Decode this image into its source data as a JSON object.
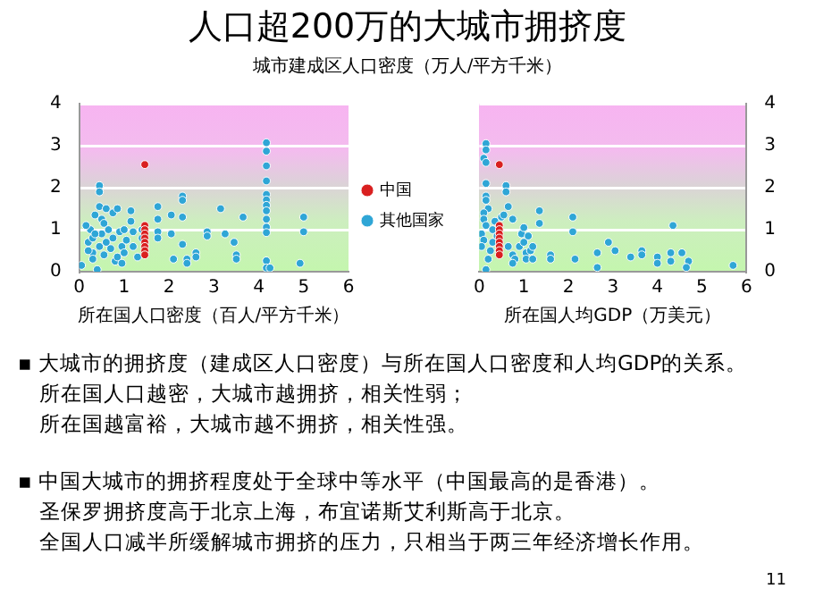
{
  "chart_data": [
    {
      "type": "scatter",
      "title": "人口超200万的大城市拥挤度",
      "ylabel": "城市建成区人口密度（万人/平方千米）",
      "xlabel": "所在国人口密度（百人/平方千米）",
      "xlim": [
        0,
        6
      ],
      "xticks": [
        0,
        1,
        2,
        3,
        4,
        5,
        6
      ],
      "ylim": [
        0,
        4
      ],
      "yticks": [
        0,
        1,
        2,
        3,
        4
      ],
      "grid": "y",
      "legend": "right",
      "marker": "circle",
      "series": [
        {
          "name": "中国",
          "color": "#d92020",
          "x": [
            1.46,
            1.46,
            1.46,
            1.46,
            1.46,
            1.46,
            1.46,
            1.46,
            1.46
          ],
          "values": [
            2.55,
            1.1,
            1.0,
            0.9,
            0.8,
            0.7,
            0.6,
            0.5,
            0.4
          ]
        },
        {
          "name": "其他国家",
          "color": "#2fa6d6",
          "x": [
            4.17,
            4.17,
            4.17,
            4.17,
            4.17,
            4.17,
            4.17,
            4.17,
            4.17,
            4.17,
            4.17,
            4.17,
            4.17,
            4.25,
            5.0,
            5.0,
            4.92,
            2.3,
            2.3,
            2.3,
            1.75,
            1.75,
            1.75,
            1.75,
            2.05,
            2.05,
            2.1,
            2.3,
            2.4,
            2.4,
            2.6,
            2.6,
            2.85,
            2.85,
            3.15,
            3.25,
            3.45,
            3.5,
            3.5,
            3.65,
            1.15,
            1.15,
            1.2,
            1.2,
            1.3,
            1.4,
            1.4,
            0.05,
            0.2,
            0.25,
            0.3,
            0.3,
            0.35,
            0.4,
            0.45,
            0.45,
            0.45,
            0.45,
            0.5,
            0.5,
            0.55,
            0.6,
            0.65,
            0.7,
            0.75,
            0.75,
            0.8,
            0.85,
            0.85,
            0.9,
            0.95,
            0.95,
            1.0,
            1.0,
            1.05,
            0.15,
            0.3,
            0.6,
            0.2,
            0.35,
            0.55
          ],
          "values": [
            3.07,
            2.87,
            2.52,
            2.16,
            1.84,
            1.71,
            1.58,
            1.45,
            1.25,
            1.06,
            0.93,
            0.26,
            0.09,
            0.09,
            1.3,
            0.95,
            0.2,
            1.8,
            1.7,
            1.3,
            1.55,
            1.25,
            0.95,
            0.8,
            1.35,
            0.9,
            0.3,
            0.65,
            0.3,
            0.2,
            0.45,
            0.35,
            0.95,
            0.85,
            1.5,
            0.9,
            0.7,
            0.4,
            0.3,
            1.3,
            1.45,
            1.2,
            0.95,
            0.6,
            0.35,
            1.0,
            0.8,
            0.15,
            0.7,
            1.0,
            0.45,
            0.3,
            1.35,
            0.05,
            2.05,
            1.9,
            1.55,
            0.6,
            1.25,
            0.9,
            0.4,
            1.5,
            1.0,
            0.55,
            1.4,
            0.8,
            0.25,
            1.5,
            0.35,
            0.95,
            0.2,
            0.6,
            1.0,
            0.45,
            0.75,
            1.1,
            0.8,
            0.7,
            0.5,
            0.9,
            1.15
          ]
        }
      ]
    },
    {
      "type": "scatter",
      "xlabel": "所在国人均GDP（万美元）",
      "xlim": [
        0,
        6
      ],
      "xticks": [
        0,
        1,
        2,
        3,
        4,
        5,
        6
      ],
      "ylim": [
        0,
        4
      ],
      "yticks": [
        0,
        1,
        2,
        3,
        4
      ],
      "grid": "y",
      "marker": "circle",
      "annotations": [
        "11"
      ],
      "series": [
        {
          "color": "#d92020",
          "x": [
            0.45,
            0.45,
            0.45,
            0.45,
            0.45,
            0.45,
            0.45,
            0.45,
            0.45
          ],
          "values": [
            2.55,
            1.1,
            1.0,
            0.9,
            0.8,
            0.7,
            0.6,
            0.5,
            0.4
          ]
        },
        {
          "color": "#2fa6d6",
          "x": [
            0.15,
            0.15,
            0.1,
            0.15,
            0.15,
            0.15,
            0.15,
            0.2,
            0.1,
            0.1,
            0.15,
            0.05,
            0.1,
            0.05,
            0.15,
            0.2,
            0.25,
            0.3,
            0.3,
            0.6,
            0.6,
            0.65,
            0.5,
            0.55,
            0.75,
            0.4,
            0.35,
            0.65,
            0.75,
            0.8,
            0.75,
            0.9,
            0.95,
            1.0,
            1.0,
            1.05,
            1.05,
            1.1,
            1.15,
            1.2,
            1.2,
            1.35,
            1.35,
            1.6,
            1.6,
            2.1,
            2.1,
            2.15,
            2.65,
            2.65,
            2.9,
            3.05,
            3.4,
            3.65,
            3.65,
            4.0,
            4.0,
            4.35,
            4.3,
            4.3,
            4.55,
            4.7,
            4.65,
            5.7
          ],
          "values": [
            3.05,
            2.9,
            2.7,
            2.6,
            2.1,
            1.8,
            1.7,
            1.5,
            1.4,
            1.25,
            1.1,
            0.9,
            0.75,
            0.6,
            0.05,
            0.3,
            0.5,
            1.0,
            0.7,
            2.05,
            1.9,
            1.55,
            1.3,
            1.35,
            1.25,
            0.85,
            1.2,
            0.6,
            0.4,
            0.3,
            0.2,
            0.6,
            0.9,
            1.05,
            0.7,
            0.45,
            0.3,
            0.85,
            0.5,
            0.6,
            0.3,
            1.45,
            1.15,
            0.4,
            0.3,
            1.3,
            0.95,
            0.3,
            0.45,
            0.1,
            0.7,
            0.5,
            0.35,
            0.5,
            0.4,
            0.35,
            0.2,
            1.1,
            0.45,
            0.25,
            0.45,
            0.25,
            0.1,
            0.15
          ]
        }
      ]
    },
    {
      "type": "other",
      "annotations": [
        "▪ 大城市的拥挤度（建成区人口密度）与所在国人口密度和人均GDP的关系。",
        "所在国人口越密，大城市越拥挤，相关性弱；",
        "所在国越富裕，大城市越不拥挤，相关性强。"
      ]
    },
    {
      "type": "other",
      "annotations": [
        "▪ 中国大城市的拥挤程度处于全球中等水平（中国最高的是香港）。",
        "圣保罗拥挤度高于北京上海，布宜诺斯艾利斯高于北京。",
        "全国人口减半所缓解城市拥挤的压力，只相当于两三年经济增长作用。"
      ]
    }
  ]
}
